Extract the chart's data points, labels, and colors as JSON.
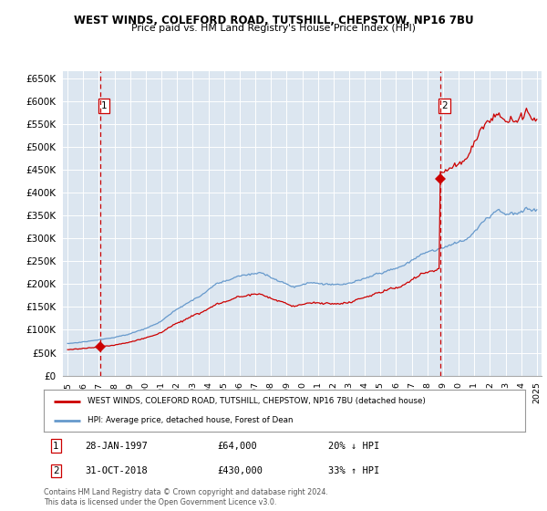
{
  "title": "WEST WINDS, COLEFORD ROAD, TUTSHILL, CHEPSTOW, NP16 7BU",
  "subtitle": "Price paid vs. HM Land Registry's House Price Index (HPI)",
  "bg_color": "#dce6f0",
  "ylabel_ticks": [
    "£0",
    "£50K",
    "£100K",
    "£150K",
    "£200K",
    "£250K",
    "£300K",
    "£350K",
    "£400K",
    "£450K",
    "£500K",
    "£550K",
    "£600K",
    "£650K"
  ],
  "ytick_values": [
    0,
    50000,
    100000,
    150000,
    200000,
    250000,
    300000,
    350000,
    400000,
    450000,
    500000,
    550000,
    600000,
    650000
  ],
  "sale1_year": 1997.08,
  "sale1_price": 64000,
  "sale2_year": 2018.83,
  "sale2_price": 430000,
  "red_line_color": "#cc0000",
  "blue_line_color": "#6699cc",
  "dashed_line_color": "#cc0000",
  "marker_color": "#cc0000",
  "legend_label1": "WEST WINDS, COLEFORD ROAD, TUTSHILL, CHEPSTOW, NP16 7BU (detached house)",
  "legend_label2": "HPI: Average price, detached house, Forest of Dean",
  "footnote": "Contains HM Land Registry data © Crown copyright and database right 2024.\nThis data is licensed under the Open Government Licence v3.0."
}
